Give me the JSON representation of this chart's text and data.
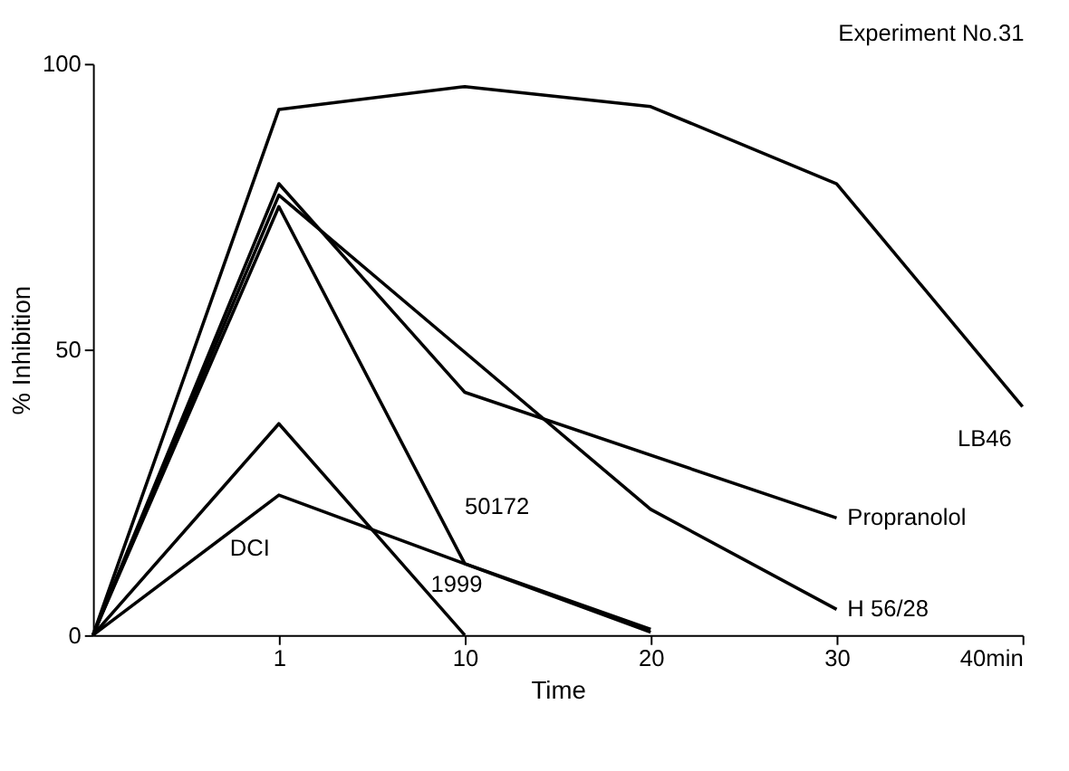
{
  "chart_data": {
    "type": "line",
    "title": "Experiment No.31",
    "xlabel": "Time",
    "ylabel": "% Inhibition",
    "categories": [
      null,
      "1",
      "10",
      "20",
      "30",
      "40min"
    ],
    "ylim": [
      0,
      100
    ],
    "yticks": [
      0,
      50,
      100
    ],
    "grid": false,
    "legend": false,
    "marker": "none",
    "line_style": "solid",
    "series": [
      {
        "name": "LB46",
        "color": "#000000",
        "values": [
          0,
          92,
          96,
          92.5,
          79,
          40
        ]
      },
      {
        "name": "Propranolol",
        "color": "#000000",
        "values": [
          0,
          79,
          42.5,
          null,
          20.5,
          null
        ]
      },
      {
        "name": "H 56/28",
        "color": "#000000",
        "values": [
          0,
          77,
          null,
          22,
          4.5,
          null
        ]
      },
      {
        "name": "50172",
        "color": "#000000",
        "values": [
          0,
          75,
          12.5,
          1,
          null,
          null
        ]
      },
      {
        "name": "1999",
        "color": "#000000",
        "values": [
          0,
          37,
          0,
          null,
          null,
          null
        ]
      },
      {
        "name": "DCI",
        "color": "#000000",
        "values": [
          0,
          24.5,
          null,
          0.5,
          null,
          null
        ]
      }
    ]
  }
}
